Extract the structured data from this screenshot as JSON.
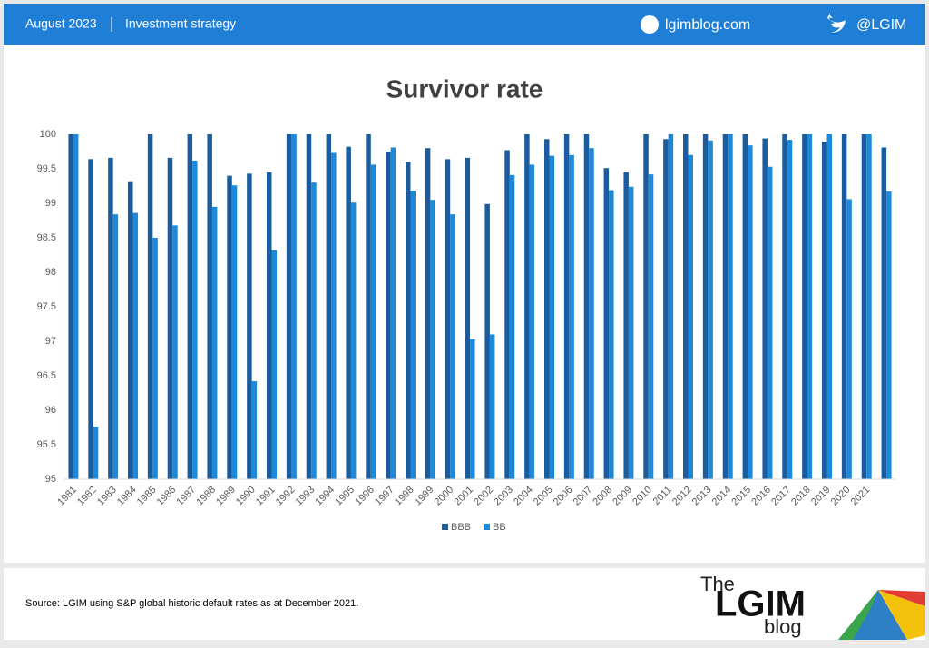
{
  "header": {
    "date": "August 2023",
    "section": "Investment strategy",
    "site": "lgimblog.com",
    "handle": "@LGIM"
  },
  "footer": {
    "source": "Source: LGIM using S&P global historic default rates as at December 2021.",
    "logo": [
      "The",
      "LGIM",
      "blog"
    ]
  },
  "chart_data": {
    "type": "bar",
    "title": "Survivor rate",
    "categories": [
      "1981",
      "1982",
      "1983",
      "1984",
      "1985",
      "1986",
      "1987",
      "1988",
      "1989",
      "1990",
      "1991",
      "1992",
      "1993",
      "1994",
      "1995",
      "1996",
      "1997",
      "1998",
      "1999",
      "2000",
      "2001",
      "2002",
      "2003",
      "2004",
      "2005",
      "2006",
      "2007",
      "2008",
      "2009",
      "2010",
      "2011",
      "2012",
      "2013",
      "2014",
      "2015",
      "2016",
      "2017",
      "2018",
      "2019",
      "2020",
      "2021",
      null
    ],
    "series": [
      {
        "name": "BBB",
        "color": "#1b5c9e",
        "values": [
          100,
          99.64,
          99.66,
          99.32,
          100,
          99.66,
          100,
          100,
          99.4,
          99.43,
          99.45,
          100,
          100,
          100,
          99.82,
          100,
          99.75,
          99.6,
          99.8,
          99.64,
          99.66,
          98.99,
          99.77,
          100,
          99.93,
          100,
          100,
          99.51,
          99.45,
          100,
          99.93,
          100,
          100,
          100,
          100,
          99.94,
          100,
          100,
          99.89,
          100,
          100,
          99.81
        ]
      },
      {
        "name": "BB",
        "color": "#1e88d9",
        "values": [
          100,
          95.76,
          98.84,
          98.86,
          98.5,
          98.68,
          99.62,
          98.95,
          99.26,
          96.42,
          98.32,
          100,
          99.3,
          99.73,
          99.01,
          99.56,
          99.81,
          99.18,
          99.05,
          98.84,
          97.03,
          97.1,
          99.41,
          99.56,
          99.69,
          99.7,
          99.8,
          99.19,
          99.24,
          99.42,
          100,
          99.7,
          99.91,
          100,
          99.84,
          99.53,
          99.92,
          100,
          100,
          99.06,
          100,
          99.17
        ]
      }
    ],
    "ylim": [
      95,
      100
    ],
    "yticks": [
      95,
      95.5,
      96,
      96.5,
      97,
      97.5,
      98,
      98.5,
      99,
      99.5,
      100
    ],
    "grid": false,
    "legend": "bottom"
  }
}
